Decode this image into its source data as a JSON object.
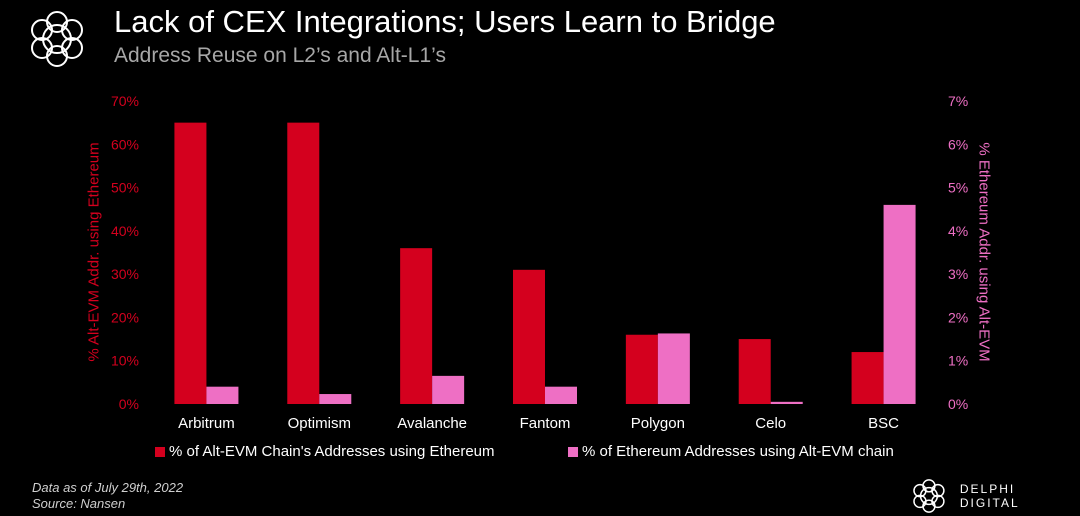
{
  "header": {
    "title": "Lack of CEX Integrations; Users Learn to Bridge",
    "subtitle": "Address Reuse on L2’s and Alt-L1’s"
  },
  "footnote": {
    "line1": "Data as of July 29th, 2022",
    "line2": "Source: Nansen"
  },
  "brand": {
    "name": "DELPHI DIGITAL",
    "logo_icon": "delphi-flower-logo-icon"
  },
  "colors": {
    "primary": "#d4001e",
    "secondary": "#ee6fc4",
    "background": "#000000"
  },
  "chart_data": {
    "type": "bar",
    "categories": [
      "Arbitrum",
      "Optimism",
      "Avalanche",
      "Fantom",
      "Polygon",
      "Celo",
      "BSC"
    ],
    "series": [
      {
        "name": "% of Alt-EVM Chain's Addresses using Ethereum",
        "axis": "left",
        "values": [
          65,
          65,
          36,
          31,
          16,
          15,
          12
        ]
      },
      {
        "name": "% of Ethereum Addresses using Alt-EVM chain",
        "axis": "right",
        "values": [
          0.4,
          0.23,
          0.65,
          0.4,
          1.63,
          0.05,
          4.6
        ]
      }
    ],
    "ylabel": "% Alt-EVM Addr. using Ethereum",
    "ylabel_right": "% Ethereum Addr. using Alt-EVM",
    "ylim": [
      0,
      70
    ],
    "ylim_right": [
      0,
      7
    ],
    "yticks": [
      "0%",
      "10%",
      "20%",
      "30%",
      "40%",
      "50%",
      "60%",
      "70%"
    ],
    "yticks_right": [
      "0%",
      "1%",
      "2%",
      "3%",
      "4%",
      "5%",
      "6%",
      "7%"
    ],
    "legend_position": "bottom",
    "grid": false
  }
}
